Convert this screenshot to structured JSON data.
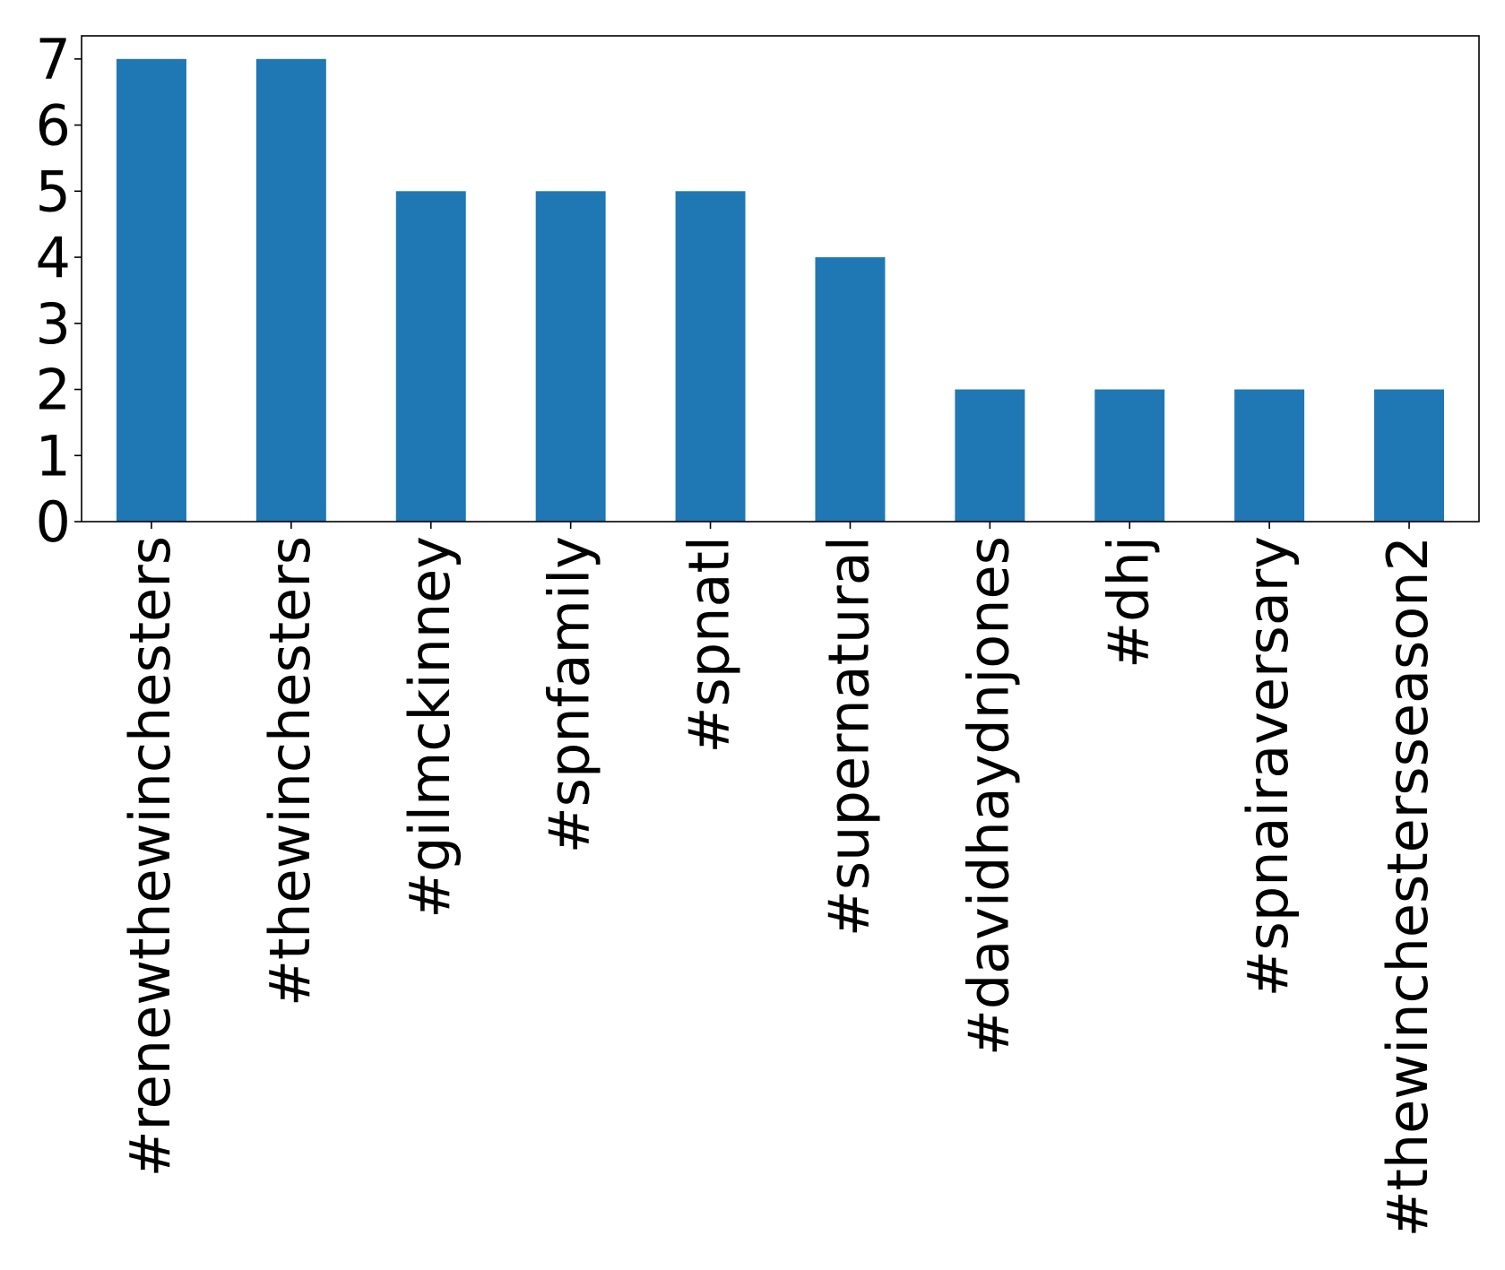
{
  "chart_data": {
    "type": "bar",
    "title": "",
    "xlabel": "",
    "ylabel": "",
    "categories": [
      "#renewthewinchesters",
      "#thewinchesters",
      "#gilmckinney",
      "#spnfamily",
      "#spnatl",
      "#supernatural",
      "#davidhaydnjones",
      "#dhj",
      "#spnairaversary",
      "#thewinchestersseason2"
    ],
    "values": [
      7,
      7,
      5,
      5,
      5,
      4,
      2,
      2,
      2,
      2
    ],
    "ylim": [
      0,
      7.35
    ],
    "yticks": [
      0,
      1,
      2,
      3,
      4,
      5,
      6,
      7
    ],
    "bar_color": "#1f77b4",
    "grid": false,
    "legend": "none"
  }
}
